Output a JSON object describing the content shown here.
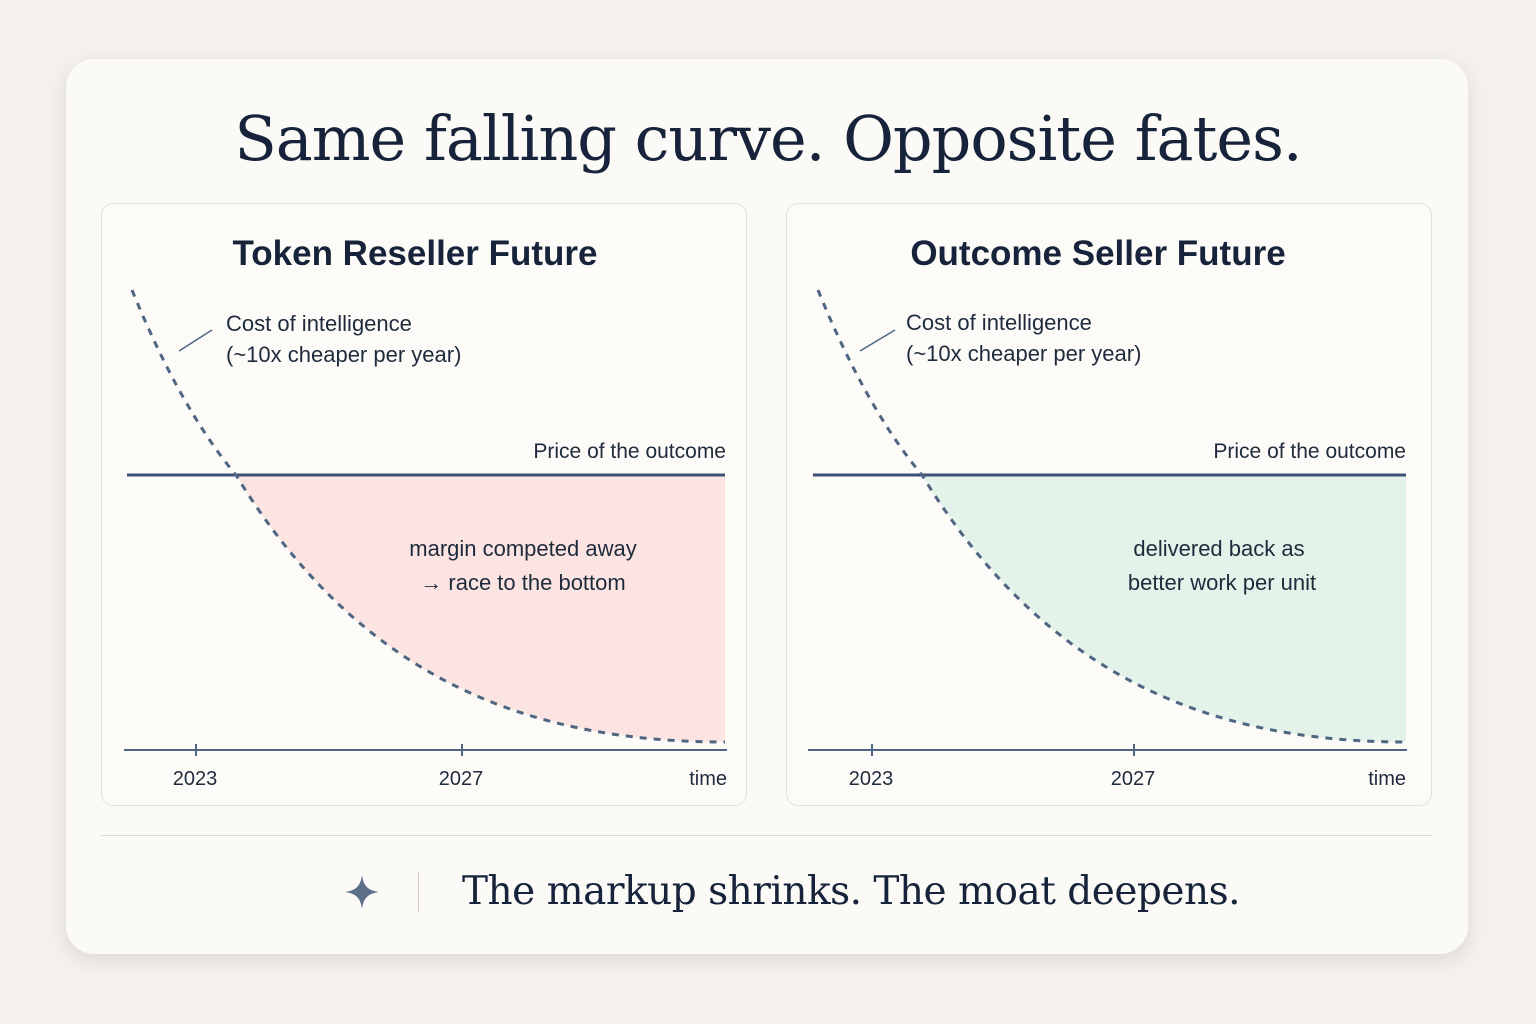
{
  "title": "Same falling curve. Opposite fates.",
  "footer": {
    "icon": "sparkle-icon",
    "text": "The markup shrinks. The moat deepens."
  },
  "colors": {
    "curve": "#4f6683",
    "price_line": "#3c5272",
    "axis": "#4f6683",
    "reseller_fill": "#fbe4e1",
    "outcome_fill": "#e3f3ea"
  },
  "chart_data": [
    {
      "type": "line",
      "title": "Token Reseller Future",
      "xlabel": "time",
      "x_ticks": [
        "2023",
        "2027"
      ],
      "series": [
        {
          "name": "Cost of intelligence",
          "annotation": [
            "Cost of intelligence",
            "(~10x cheaper per year)"
          ],
          "style": "dashed"
        },
        {
          "name": "Price of the outcome",
          "style": "solid"
        }
      ],
      "shaded_region": {
        "between": "Price of the outcome and Cost of intelligence",
        "color": "#fbe4e1",
        "label": [
          "margin competed away",
          "→ race to the bottom"
        ]
      }
    },
    {
      "type": "line",
      "title": "Outcome Seller Future",
      "xlabel": "time",
      "x_ticks": [
        "2023",
        "2027"
      ],
      "series": [
        {
          "name": "Cost of intelligence",
          "annotation": [
            "Cost of intelligence",
            "(~10x cheaper per year)"
          ],
          "style": "dashed"
        },
        {
          "name": "Price of the outcome",
          "style": "solid"
        }
      ],
      "shaded_region": {
        "between": "Price of the outcome and Cost of intelligence",
        "color": "#e3f3ea",
        "label": [
          "delivered back as",
          "better work per unit"
        ]
      }
    }
  ]
}
